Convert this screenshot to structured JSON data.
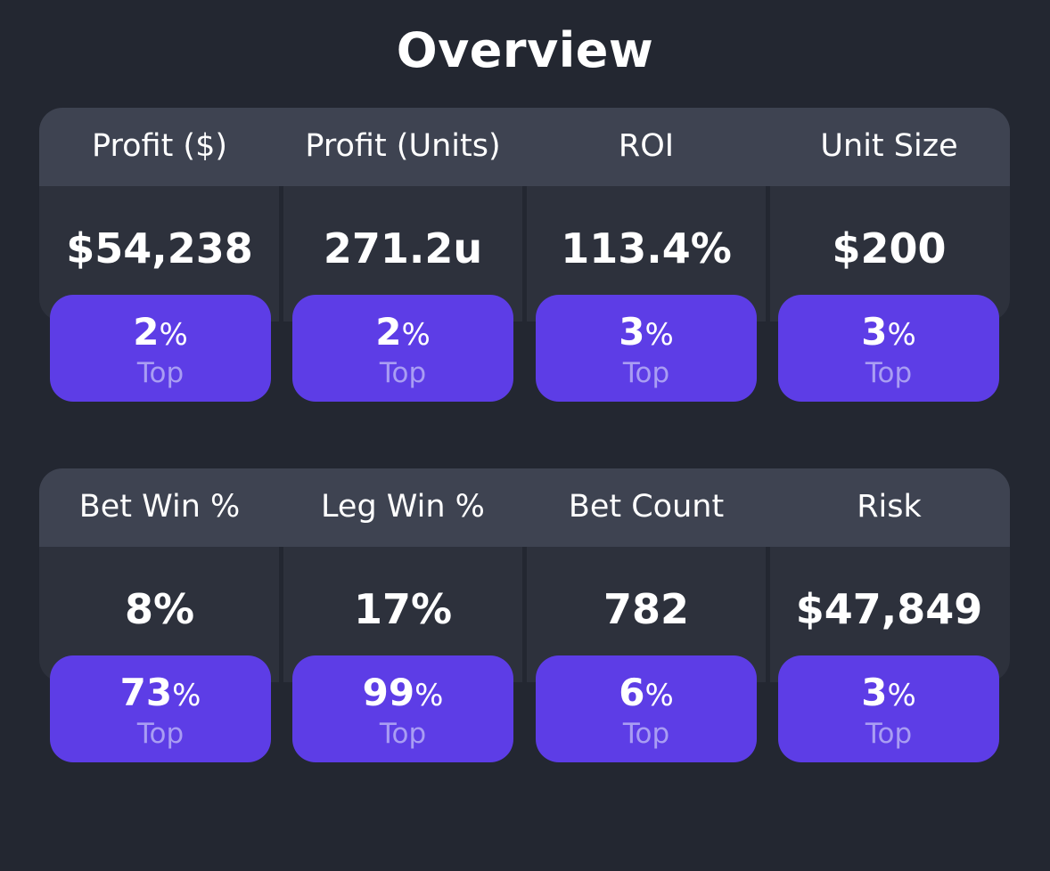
{
  "title": "Overview",
  "colors": {
    "background": "#232731",
    "card": "#2d313c",
    "header": "#3e4351",
    "badge": "#5d3de6",
    "badge_label": "#a99df3"
  },
  "sections": [
    {
      "stats": [
        {
          "label": "Profit ($)",
          "value": "$54,238",
          "rank_number": "2",
          "rank_sign": "%",
          "rank_label": "Top"
        },
        {
          "label": "Profit (Units)",
          "value": "271.2u",
          "rank_number": "2",
          "rank_sign": "%",
          "rank_label": "Top"
        },
        {
          "label": "ROI",
          "value": "113.4%",
          "rank_number": "3",
          "rank_sign": "%",
          "rank_label": "Top"
        },
        {
          "label": "Unit Size",
          "value": "$200",
          "rank_number": "3",
          "rank_sign": "%",
          "rank_label": "Top"
        }
      ]
    },
    {
      "stats": [
        {
          "label": "Bet Win %",
          "value": "8%",
          "rank_number": "73",
          "rank_sign": "%",
          "rank_label": "Top"
        },
        {
          "label": "Leg Win %",
          "value": "17%",
          "rank_number": "99",
          "rank_sign": "%",
          "rank_label": "Top"
        },
        {
          "label": "Bet Count",
          "value": "782",
          "rank_number": "6",
          "rank_sign": "%",
          "rank_label": "Top"
        },
        {
          "label": "Risk",
          "value": "$47,849",
          "rank_number": "3",
          "rank_sign": "%",
          "rank_label": "Top"
        }
      ]
    }
  ]
}
